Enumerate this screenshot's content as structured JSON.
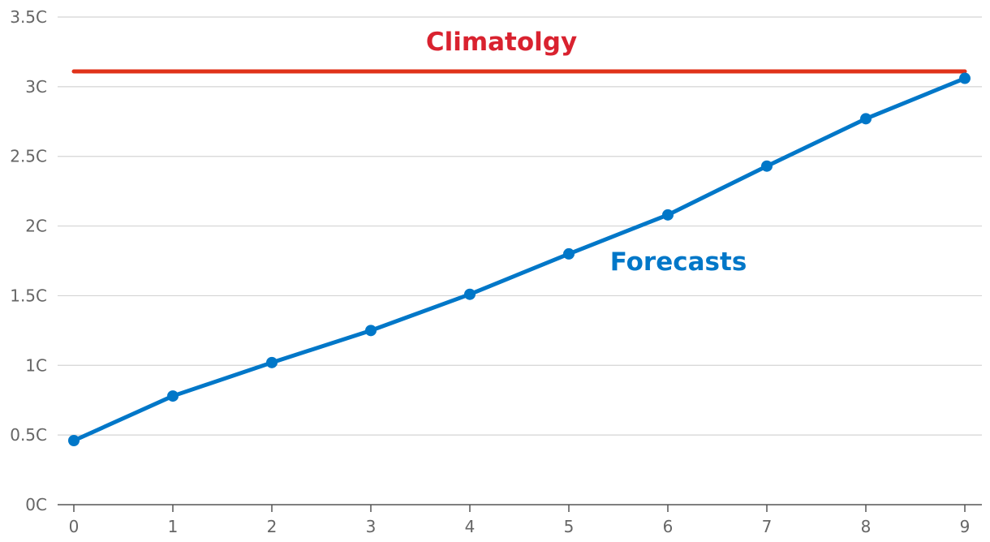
{
  "chart_data": {
    "type": "line",
    "title": "",
    "xlabel": "",
    "ylabel": "",
    "x": [
      0,
      1,
      2,
      3,
      4,
      5,
      6,
      7,
      8,
      9
    ],
    "xlim": [
      0,
      9
    ],
    "ylim": [
      0,
      3.5
    ],
    "y_ticks": [
      0,
      0.5,
      1,
      1.5,
      2,
      2.5,
      3,
      3.5
    ],
    "y_tick_labels": [
      "0C",
      "0.5C",
      "1C",
      "1.5C",
      "2C",
      "2.5C",
      "3C",
      "3.5C"
    ],
    "x_tick_labels": [
      "0",
      "1",
      "2",
      "3",
      "4",
      "5",
      "6",
      "7",
      "8",
      "9"
    ],
    "grid": true,
    "legend": "none",
    "series": [
      {
        "name": "Forecasts",
        "color": "#0077c8",
        "values": [
          0.46,
          0.78,
          1.02,
          1.25,
          1.51,
          1.8,
          2.08,
          2.43,
          2.77,
          3.06
        ]
      },
      {
        "name": "Climatolgy",
        "color": "#e0321a",
        "label_color": "#d9222f",
        "values": [
          3.11,
          3.11,
          3.11,
          3.11,
          3.11,
          3.11,
          3.11,
          3.11,
          3.11,
          3.11
        ]
      }
    ]
  }
}
